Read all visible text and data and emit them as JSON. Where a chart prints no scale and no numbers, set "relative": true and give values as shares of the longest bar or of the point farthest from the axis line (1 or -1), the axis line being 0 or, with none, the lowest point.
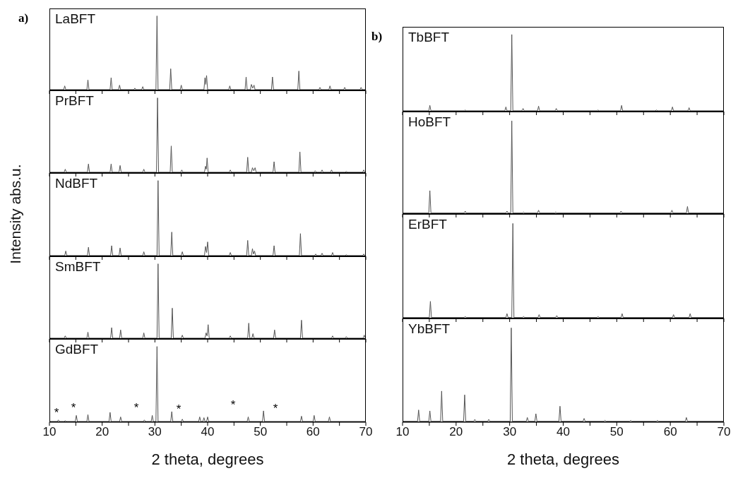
{
  "chart_data": [
    {
      "type": "line",
      "title": "LaBFT",
      "annotations": [
        "a)"
      ],
      "relative": true,
      "color": "#555555",
      "xlim": [
        10,
        70
      ],
      "xticks": [
        10,
        {
          "value": 15,
          "label": null
        },
        20,
        {
          "value": 25,
          "label": null
        },
        30,
        {
          "value": 35,
          "label": null
        },
        40,
        {
          "value": 45,
          "label": null
        },
        50,
        {
          "value": 55,
          "label": null
        },
        60,
        {
          "value": 65,
          "label": null
        },
        70
      ],
      "tick_labels": false,
      "x": [
        10,
        12.7,
        12.9,
        13.1,
        17.1,
        17.3,
        17.5,
        21.5,
        21.7,
        21.9,
        23.1,
        23.3,
        23.5,
        26.0,
        26.2,
        26.4,
        27.5,
        27.7,
        27.9,
        30.2,
        30.4,
        30.6,
        32.8,
        33.0,
        33.2,
        34.8,
        35.0,
        35.2,
        39.3,
        39.5,
        39.65,
        39.8,
        40.0,
        44.0,
        44.2,
        44.4,
        47.1,
        47.3,
        47.5,
        48.1,
        48.3,
        48.55,
        48.8,
        49.0,
        52.1,
        52.3,
        52.5,
        57.1,
        57.3,
        57.5,
        61.1,
        61.3,
        61.5,
        63.0,
        63.2,
        63.4,
        65.8,
        66.0,
        66.2,
        68.9,
        69.1,
        69.3,
        70
      ],
      "values": [
        0.01,
        0.01,
        0.06,
        0.01,
        0.01,
        0.14,
        0.01,
        0.01,
        0.17,
        0.01,
        0.01,
        0.07,
        0.01,
        0.01,
        0.03,
        0.01,
        0.01,
        0.05,
        0.01,
        0.01,
        1,
        0.01,
        0.01,
        0.29,
        0.01,
        0.01,
        0.07,
        0.01,
        0.01,
        0.17,
        0.08,
        0.2,
        0.01,
        0.01,
        0.06,
        0.01,
        0.01,
        0.18,
        0.01,
        0.01,
        0.08,
        0.03,
        0.07,
        0.01,
        0.01,
        0.18,
        0.01,
        0.01,
        0.26,
        0.01,
        0.01,
        0.04,
        0.01,
        0.01,
        0.06,
        0.01,
        0.01,
        0.04,
        0.01,
        0.01,
        0.04,
        0.01,
        0.01
      ]
    },
    {
      "type": "line",
      "title": "PrBFT",
      "relative": true,
      "color": "#555555",
      "xlim": [
        10,
        70
      ],
      "xticks": [
        10,
        {
          "value": 15,
          "label": null
        },
        20,
        {
          "value": 25,
          "label": null
        },
        30,
        {
          "value": 35,
          "label": null
        },
        40,
        {
          "value": 45,
          "label": null
        },
        50,
        {
          "value": 55,
          "label": null
        },
        60,
        {
          "value": 65,
          "label": null
        },
        70
      ],
      "tick_labels": false,
      "x": [
        10,
        12.8,
        13.0,
        13.2,
        17.2,
        17.4,
        17.6,
        21.5,
        21.7,
        21.9,
        23.2,
        23.4,
        23.6,
        27.7,
        27.9,
        28.1,
        30.3,
        30.5,
        30.7,
        32.9,
        33.1,
        33.3,
        34.9,
        35.1,
        35.3,
        39.4,
        39.6,
        39.75,
        39.9,
        40.1,
        44.1,
        44.3,
        44.5,
        47.4,
        47.6,
        47.8,
        48.3,
        48.5,
        48.75,
        49.0,
        49.2,
        52.4,
        52.6,
        52.8,
        57.3,
        57.5,
        57.7,
        60.2,
        60.4,
        60.6,
        61.5,
        61.7,
        61.9,
        63.3,
        63.5,
        63.7,
        66.1,
        66.3,
        66.5,
        69.4,
        69.6,
        69.8,
        70
      ],
      "values": [
        0.01,
        0.01,
        0.05,
        0.01,
        0.01,
        0.12,
        0.01,
        0.01,
        0.12,
        0.01,
        0.01,
        0.1,
        0.01,
        0.01,
        0.05,
        0.01,
        0.01,
        1,
        0.01,
        0.01,
        0.36,
        0.01,
        0.01,
        0.04,
        0.01,
        0.01,
        0.09,
        0.05,
        0.2,
        0.01,
        0.01,
        0.04,
        0.01,
        0.01,
        0.21,
        0.01,
        0.01,
        0.07,
        0.03,
        0.07,
        0.01,
        0.01,
        0.15,
        0.01,
        0.01,
        0.28,
        0.01,
        0.01,
        0.03,
        0.01,
        0.01,
        0.04,
        0.01,
        0.01,
        0.04,
        0.01,
        0.01,
        0.02,
        0.01,
        0.01,
        0.04,
        0.01,
        0.01
      ]
    },
    {
      "type": "line",
      "title": "NdBFT",
      "ylabel": "Intensity abs.u.",
      "relative": true,
      "color": "#555555",
      "xlim": [
        10,
        70
      ],
      "xticks": [
        10,
        {
          "value": 15,
          "label": null
        },
        20,
        {
          "value": 25,
          "label": null
        },
        30,
        {
          "value": 35,
          "label": null
        },
        40,
        {
          "value": 45,
          "label": null
        },
        50,
        {
          "value": 55,
          "label": null
        },
        60,
        {
          "value": 65,
          "label": null
        },
        70
      ],
      "tick_labels": false,
      "x": [
        10,
        12.9,
        13.1,
        13.3,
        17.2,
        17.4,
        17.6,
        21.6,
        21.8,
        22.0,
        23.2,
        23.4,
        23.6,
        27.7,
        27.9,
        28.1,
        30.4,
        30.6,
        30.8,
        33.0,
        33.2,
        33.4,
        35.0,
        35.2,
        35.4,
        39.4,
        39.6,
        39.8,
        40.0,
        40.2,
        44.1,
        44.3,
        44.5,
        47.4,
        47.6,
        47.8,
        48.3,
        48.5,
        48.7,
        48.9,
        49.1,
        52.4,
        52.6,
        52.8,
        57.4,
        57.6,
        57.8,
        60.3,
        60.5,
        60.7,
        61.5,
        61.7,
        61.9,
        63.5,
        63.7,
        63.9,
        66.1,
        66.3,
        66.5,
        69.4,
        69.6,
        69.8,
        70
      ],
      "values": [
        0.01,
        0.01,
        0.07,
        0.01,
        0.01,
        0.12,
        0.01,
        0.01,
        0.14,
        0.01,
        0.01,
        0.11,
        0.01,
        0.01,
        0.06,
        0.01,
        0.01,
        1,
        0.01,
        0.01,
        0.32,
        0.01,
        0.01,
        0.06,
        0.01,
        0.01,
        0.13,
        0.05,
        0.19,
        0.01,
        0.01,
        0.05,
        0.01,
        0.01,
        0.21,
        0.01,
        0.01,
        0.1,
        0.03,
        0.07,
        0.01,
        0.01,
        0.14,
        0.01,
        0.01,
        0.3,
        0.01,
        0.01,
        0.03,
        0.01,
        0.01,
        0.04,
        0.01,
        0.01,
        0.05,
        0.01,
        0.01,
        0.02,
        0.01,
        0.01,
        0.03,
        0.01,
        0.01
      ]
    },
    {
      "type": "line",
      "title": "SmBFT",
      "relative": true,
      "color": "#555555",
      "xlim": [
        10,
        70
      ],
      "xticks": [
        10,
        {
          "value": 15,
          "label": null
        },
        20,
        {
          "value": 25,
          "label": null
        },
        30,
        {
          "value": 35,
          "label": null
        },
        40,
        {
          "value": 45,
          "label": null
        },
        50,
        {
          "value": 55,
          "label": null
        },
        60,
        {
          "value": 65,
          "label": null
        },
        70
      ],
      "tick_labels": false,
      "x": [
        10,
        12.8,
        13.0,
        13.2,
        17.1,
        17.3,
        17.5,
        21.6,
        21.8,
        22.0,
        23.3,
        23.5,
        23.7,
        27.7,
        27.9,
        28.1,
        30.4,
        30.6,
        30.8,
        33.1,
        33.3,
        33.5,
        35.0,
        35.2,
        35.4,
        39.5,
        39.7,
        39.9,
        40.1,
        40.3,
        44.1,
        44.3,
        44.5,
        47.6,
        47.8,
        48.0,
        48.4,
        48.6,
        48.8,
        52.5,
        52.7,
        52.9,
        57.6,
        57.8,
        58.0,
        63.5,
        63.7,
        63.9,
        66.1,
        66.3,
        66.5,
        69.5,
        69.7,
        69.9,
        70
      ],
      "values": [
        0.01,
        0.01,
        0.04,
        0.01,
        0.01,
        0.09,
        0.01,
        0.01,
        0.15,
        0.01,
        0.01,
        0.12,
        0.01,
        0.01,
        0.08,
        0.01,
        0.01,
        1,
        0.01,
        0.01,
        0.41,
        0.01,
        0.01,
        0.05,
        0.01,
        0.01,
        0.08,
        0.04,
        0.19,
        0.01,
        0.01,
        0.04,
        0.01,
        0.01,
        0.21,
        0.01,
        0.01,
        0.07,
        0.01,
        0.01,
        0.12,
        0.01,
        0.01,
        0.25,
        0.01,
        0.01,
        0.04,
        0.01,
        0.01,
        0.03,
        0.01,
        0.01,
        0.05,
        0.01,
        0.01
      ]
    },
    {
      "type": "line",
      "title": "GdBFT",
      "xlabel": "2 theta, degrees",
      "relative": true,
      "color": "#555555",
      "xlim": [
        10,
        70
      ],
      "xticks": [
        10,
        {
          "value": 15,
          "label": null
        },
        20,
        {
          "value": 25,
          "label": null
        },
        30,
        {
          "value": 35,
          "label": null
        },
        40,
        {
          "value": 45,
          "label": null
        },
        50,
        {
          "value": 55,
          "label": null
        },
        60,
        {
          "value": 65,
          "label": null
        },
        70
      ],
      "tick_labels": "x",
      "annotations": [
        "*",
        "*",
        "*",
        "*",
        "*",
        "*"
      ],
      "x": [
        10,
        11.5,
        11.7,
        11.9,
        12.8,
        13.0,
        13.2,
        14.9,
        15.1,
        15.3,
        17.1,
        17.3,
        17.5,
        21.3,
        21.5,
        21.7,
        23.3,
        23.5,
        23.7,
        27.8,
        28.0,
        28.2,
        29.3,
        29.5,
        29.7,
        30.2,
        30.4,
        30.6,
        33.0,
        33.2,
        33.4,
        35.0,
        35.2,
        35.4,
        38.3,
        38.5,
        38.7,
        39.1,
        39.3,
        39.5,
        39.8,
        40.0,
        40.2,
        47.5,
        47.7,
        47.9,
        50.4,
        50.6,
        50.8,
        57.6,
        57.8,
        58.0,
        60.0,
        60.2,
        60.4,
        62.9,
        63.1,
        63.3,
        70
      ],
      "values": [
        0.01,
        0.01,
        0.03,
        0.01,
        0.01,
        0.02,
        0.01,
        0.01,
        0.09,
        0.01,
        0.01,
        0.1,
        0.01,
        0.01,
        0.13,
        0.01,
        0.01,
        0.07,
        0.01,
        0.01,
        0.03,
        0.01,
        0.01,
        0.09,
        0.01,
        0.01,
        1,
        0.01,
        0.01,
        0.14,
        0.01,
        0.01,
        0.04,
        0.01,
        0.01,
        0.07,
        0.01,
        0.01,
        0.06,
        0.01,
        0.01,
        0.07,
        0.01,
        0.01,
        0.07,
        0.01,
        0.01,
        0.15,
        0.01,
        0.01,
        0.08,
        0.01,
        0.01,
        0.09,
        0.01,
        0.01,
        0.07,
        0.01,
        0.01
      ]
    },
    {
      "type": "line",
      "title": "TbBFT",
      "annotations": [
        "b)"
      ],
      "relative": true,
      "color": "#555555",
      "xlim": [
        10,
        70
      ],
      "xticks": [
        10,
        {
          "value": 15,
          "label": null
        },
        20,
        {
          "value": 25,
          "label": null
        },
        30,
        {
          "value": 35,
          "label": null
        },
        40,
        {
          "value": 45,
          "label": null
        },
        50,
        {
          "value": 55,
          "label": null
        },
        60,
        {
          "value": 65,
          "label": null
        },
        70
      ],
      "tick_labels": false,
      "x": [
        10,
        14.9,
        15.1,
        15.3,
        21.5,
        21.7,
        21.9,
        29.1,
        29.3,
        29.5,
        30.2,
        30.4,
        30.6,
        32.3,
        32.5,
        32.7,
        35.2,
        35.4,
        35.6,
        38.5,
        38.7,
        38.9,
        46.3,
        46.5,
        46.7,
        50.7,
        50.9,
        51.1,
        57.2,
        57.4,
        57.6,
        60.2,
        60.4,
        60.6,
        63.3,
        63.5,
        63.7,
        70
      ],
      "values": [
        0.01,
        0.01,
        0.08,
        0.01,
        0.01,
        0.02,
        0.01,
        0.01,
        0.06,
        0.01,
        0.01,
        1,
        0.01,
        0.01,
        0.04,
        0.01,
        0.01,
        0.07,
        0.01,
        0.01,
        0.04,
        0.01,
        0.01,
        0.02,
        0.01,
        0.01,
        0.08,
        0.01,
        0.01,
        0.02,
        0.01,
        0.01,
        0.06,
        0.01,
        0.01,
        0.05,
        0.01,
        0.01
      ]
    },
    {
      "type": "line",
      "title": "HoBFT",
      "relative": true,
      "color": "#555555",
      "xlim": [
        10,
        70
      ],
      "xticks": [
        10,
        {
          "value": 15,
          "label": null
        },
        20,
        {
          "value": 25,
          "label": null
        },
        30,
        {
          "value": 35,
          "label": null
        },
        40,
        {
          "value": 45,
          "label": null
        },
        50,
        {
          "value": 55,
          "label": null
        },
        60,
        {
          "value": 65,
          "label": null
        },
        70
      ],
      "tick_labels": false,
      "x": [
        10,
        14.9,
        15.1,
        15.3,
        21.5,
        21.7,
        21.9,
        29.3,
        29.5,
        29.7,
        30.2,
        30.4,
        30.6,
        32.4,
        32.6,
        32.8,
        35.2,
        35.4,
        35.6,
        38.4,
        38.6,
        38.8,
        50.6,
        50.8,
        51.0,
        60.1,
        60.3,
        60.5,
        63.0,
        63.2,
        63.4,
        70
      ],
      "values": [
        0.01,
        0.01,
        0.25,
        0.01,
        0.01,
        0.03,
        0.01,
        0.01,
        0.03,
        0.01,
        0.01,
        1,
        0.01,
        0.01,
        0.02,
        0.01,
        0.01,
        0.04,
        0.01,
        0.01,
        0.02,
        0.01,
        0.01,
        0.03,
        0.01,
        0.01,
        0.04,
        0.01,
        0.01,
        0.08,
        0.01,
        0.01
      ]
    },
    {
      "type": "line",
      "title": "ErBFT",
      "relative": true,
      "color": "#555555",
      "xlim": [
        10,
        70
      ],
      "xticks": [
        10,
        {
          "value": 15,
          "label": null
        },
        20,
        {
          "value": 25,
          "label": null
        },
        30,
        {
          "value": 35,
          "label": null
        },
        40,
        {
          "value": 45,
          "label": null
        },
        50,
        {
          "value": 55,
          "label": null
        },
        60,
        {
          "value": 65,
          "label": null
        },
        70
      ],
      "tick_labels": false,
      "x": [
        10,
        15.0,
        15.2,
        15.4,
        21.5,
        21.7,
        21.9,
        29.3,
        29.5,
        29.7,
        30.4,
        30.6,
        30.8,
        32.4,
        32.6,
        32.8,
        35.3,
        35.5,
        35.7,
        38.6,
        38.8,
        39.0,
        46.3,
        46.5,
        46.7,
        50.8,
        51.0,
        51.2,
        60.4,
        60.6,
        60.8,
        63.5,
        63.7,
        63.9,
        70
      ],
      "values": [
        0.01,
        0.01,
        0.18,
        0.01,
        0.01,
        0.02,
        0.01,
        0.01,
        0.05,
        0.01,
        0.01,
        1,
        0.01,
        0.01,
        0.02,
        0.01,
        0.01,
        0.04,
        0.01,
        0.01,
        0.03,
        0.01,
        0.01,
        0.02,
        0.01,
        0.01,
        0.05,
        0.01,
        0.01,
        0.04,
        0.01,
        0.01,
        0.05,
        0.01,
        0.01
      ]
    },
    {
      "type": "line",
      "title": "YbBFT",
      "xlabel": "2 theta, degrees",
      "relative": true,
      "color": "#555555",
      "xlim": [
        10,
        70
      ],
      "xticks": [
        10,
        {
          "value": 15,
          "label": null
        },
        20,
        {
          "value": 25,
          "label": null
        },
        30,
        {
          "value": 35,
          "label": null
        },
        40,
        {
          "value": 45,
          "label": null
        },
        50,
        {
          "value": 55,
          "label": null
        },
        60,
        {
          "value": 65,
          "label": null
        },
        70
      ],
      "tick_labels": "x",
      "x": [
        10,
        12.8,
        13.0,
        13.2,
        14.9,
        15.1,
        15.3,
        17.1,
        17.3,
        17.5,
        21.4,
        21.6,
        21.8,
        23.3,
        23.5,
        23.7,
        25.9,
        26.1,
        26.3,
        30.1,
        30.3,
        30.5,
        33.1,
        33.3,
        33.5,
        34.7,
        34.9,
        35.1,
        39.2,
        39.4,
        39.6,
        43.7,
        43.9,
        44.1,
        47.6,
        47.8,
        48.0,
        52.4,
        52.6,
        52.8,
        57.4,
        57.6,
        57.8,
        62.8,
        63.0,
        63.2,
        70
      ],
      "values": [
        0.01,
        0.01,
        0.13,
        0.01,
        0.01,
        0.12,
        0.01,
        0.01,
        0.33,
        0.01,
        0.01,
        0.29,
        0.01,
        0.01,
        0.03,
        0.01,
        0.01,
        0.03,
        0.01,
        0.01,
        1,
        0.01,
        0.01,
        0.05,
        0.01,
        0.01,
        0.09,
        0.01,
        0.01,
        0.17,
        0.01,
        0.01,
        0.04,
        0.01,
        0.01,
        0.02,
        0.01,
        0.01,
        0.02,
        0.01,
        0.01,
        0.02,
        0.01,
        0.01,
        0.05,
        0.01,
        0.01
      ]
    }
  ]
}
